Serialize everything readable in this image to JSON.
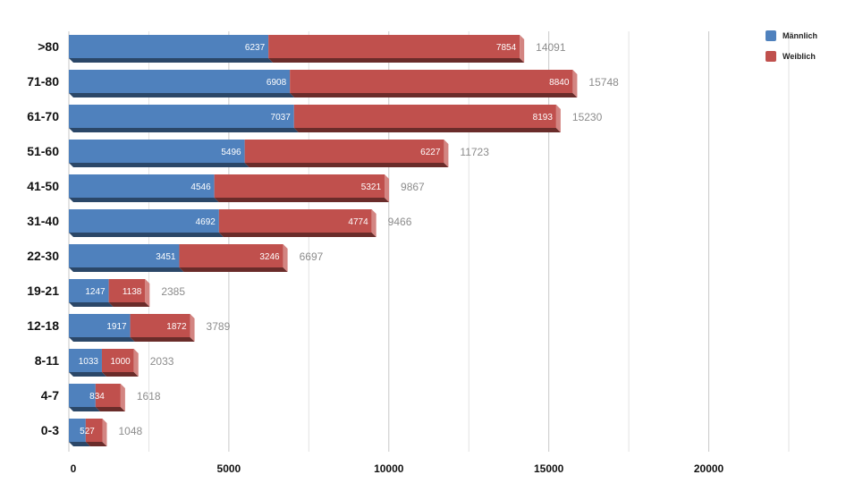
{
  "chart_data": {
    "type": "bar",
    "orientation": "horizontal",
    "stacked": true,
    "categories": [
      ">80",
      "71-80",
      "61-70",
      "51-60",
      "41-50",
      "31-40",
      "22-30",
      "19-21",
      "12-18",
      "8-11",
      "4-7",
      "0-3"
    ],
    "series": [
      {
        "name": "Männlich",
        "color": "#4f81bd",
        "values": [
          6237,
          6908,
          7037,
          5496,
          4546,
          4692,
          3451,
          1247,
          1917,
          1033,
          834,
          527
        ]
      },
      {
        "name": "Weiblich",
        "color": "#c0504d",
        "values": [
          7854,
          8840,
          8193,
          6227,
          5321,
          4774,
          3246,
          1138,
          1872,
          1000,
          784,
          521
        ]
      }
    ],
    "totals": [
      14091,
      15748,
      15230,
      11723,
      9867,
      9466,
      6697,
      2385,
      3789,
      2033,
      1618,
      1048
    ],
    "xlim": [
      0,
      22500
    ],
    "xticks": [
      0,
      5000,
      10000,
      15000,
      20000
    ],
    "grid": true,
    "legend_position": "top-right",
    "title": "",
    "xlabel": "",
    "ylabel": ""
  }
}
